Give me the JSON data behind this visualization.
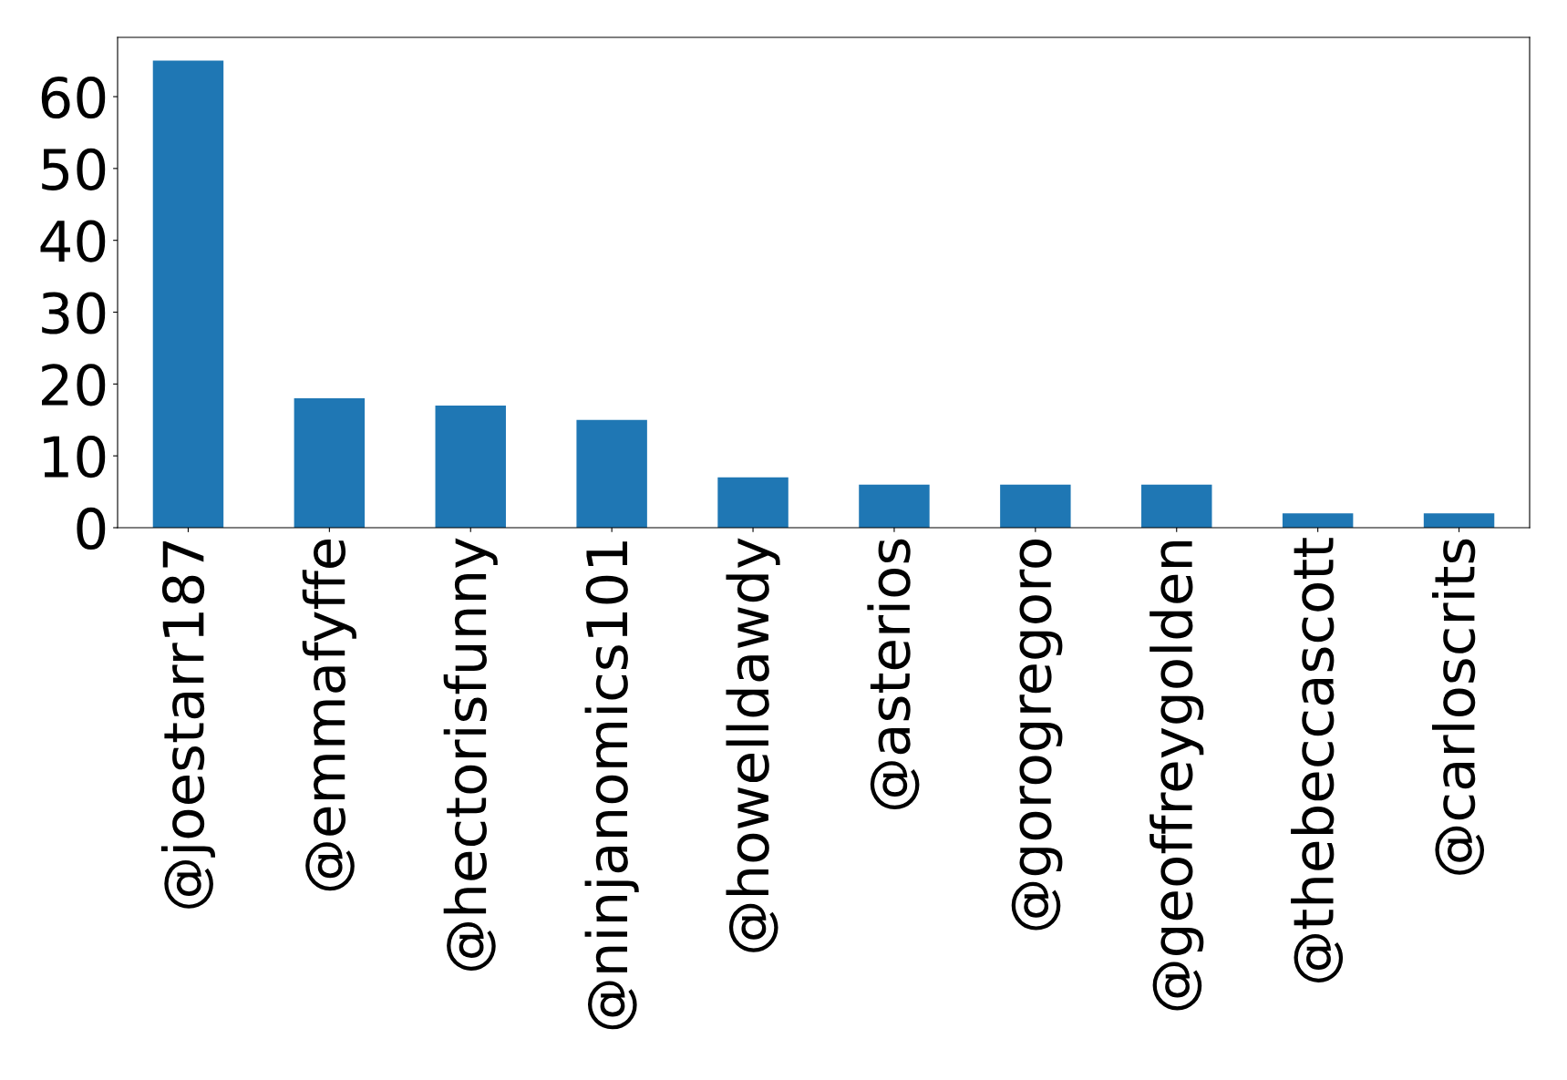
{
  "chart_data": {
    "type": "bar",
    "categories": [
      "@joestarr187",
      "@emmafyffe",
      "@hectorisfunny",
      "@ninjanomics101",
      "@howelldawdy",
      "@asterios",
      "@gorogregoro",
      "@geoffreygolden",
      "@thebeccascott",
      "@carloscrits"
    ],
    "values": [
      65,
      18,
      17,
      15,
      7,
      6,
      6,
      6,
      2,
      2
    ],
    "color": "#1f77b4",
    "ylim": [
      0,
      68.25
    ],
    "yticks": [
      0,
      10,
      20,
      30,
      40,
      50,
      60
    ],
    "grid": false,
    "legend": false
  }
}
